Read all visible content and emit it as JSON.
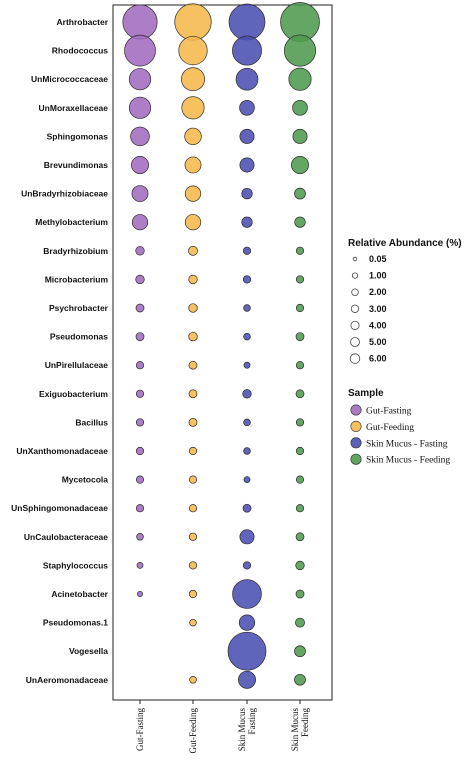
{
  "chart_data": {
    "type": "bubble",
    "x_categories": [
      "Gut-Fasting",
      "Gut-Feeding",
      "Skin Mucus - Fasting",
      "Skin Mucus - Feeding"
    ],
    "x_tick_labels": [
      [
        "Gut-Fasting"
      ],
      [
        "Gut-Feeding"
      ],
      [
        "Skin Mucus",
        "Fasting"
      ],
      [
        "Skin Mucus",
        "Feeding"
      ]
    ],
    "y_categories": [
      "Arthrobacter",
      "Rhodococcus",
      "UnMicrococcaceae",
      "UnMoraxellaceae",
      "Sphingomonas",
      "Brevundimonas",
      "UnBradyrhizobiaceae",
      "Methylobacterium",
      "Bradyrhizobium",
      "Microbacterium",
      "Psychrobacter",
      "Pseudomonas",
      "UnPirellulaceae",
      "Exiguobacterium",
      "Bacillus",
      "UnXanthomonadaceae",
      "Mycetocola",
      "UnSphingomonadaceae",
      "UnCaulobacteraceae",
      "Staphylococcus",
      "Acinetobacter",
      "Pseudomonas.1",
      "Vogesella",
      "UnAeromonadaceae"
    ],
    "series": [
      {
        "name": "Gut-Fasting",
        "color": "#a36bbf",
        "values": [
          6.4,
          5.2,
          2.5,
          2.5,
          1.9,
          1.6,
          1.4,
          1.3,
          0.4,
          0.4,
          0.35,
          0.35,
          0.3,
          0.3,
          0.3,
          0.3,
          0.3,
          0.3,
          0.25,
          0.2,
          0.15,
          0,
          0,
          0
        ]
      },
      {
        "name": "Gut-Feeding",
        "color": "#f6b84c",
        "values": [
          7.2,
          4.4,
          2.9,
          2.7,
          1.5,
          1.4,
          1.3,
          1.3,
          0.45,
          0.4,
          0.4,
          0.4,
          0.35,
          0.35,
          0.35,
          0.3,
          0.3,
          0.3,
          0.3,
          0.3,
          0.3,
          0.25,
          0,
          0.25
        ]
      },
      {
        "name": "Skin Mucus - Fasting",
        "color": "#4a4fb0",
        "values": [
          7.0,
          4.6,
          2.6,
          1.2,
          1.1,
          1.1,
          0.6,
          0.6,
          0.3,
          0.3,
          0.25,
          0.25,
          0.2,
          0.4,
          0.25,
          0.25,
          0.2,
          0.35,
          1.1,
          0.3,
          4.5,
          1.3,
          7.8,
          1.6
        ]
      },
      {
        "name": "Skin Mucus - Feeding",
        "color": "#4f9a4f",
        "values": [
          8.2,
          5.3,
          2.7,
          1.2,
          1.1,
          1.6,
          0.65,
          0.6,
          0.3,
          0.3,
          0.3,
          0.35,
          0.3,
          0.35,
          0.3,
          0.3,
          0.3,
          0.3,
          0.35,
          0.4,
          0.35,
          0.45,
          0.65,
          0.65
        ]
      }
    ],
    "legend": {
      "size_title": "Relative Abundance (%)",
      "size_labels": [
        "0.05",
        "1.00",
        "2.00",
        "3.00",
        "4.00",
        "5.00",
        "6.00"
      ],
      "size_values": [
        0.05,
        1,
        2,
        3,
        4,
        5,
        6
      ],
      "sample_title": "Sample",
      "sample_labels": [
        "Gut-Fasting",
        "Gut-Feeding",
        "Skin Mucus - Fasting",
        "Skin Mucus - Feeding"
      ],
      "position": "right"
    },
    "grid": false,
    "xlabel": "",
    "ylabel": ""
  }
}
